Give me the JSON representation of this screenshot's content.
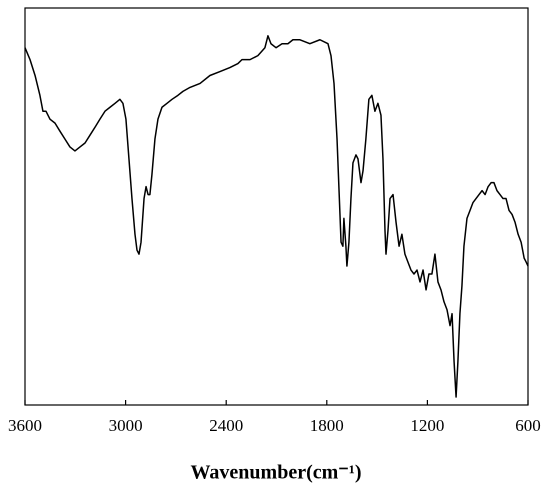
{
  "chart_data": {
    "type": "line",
    "x_label": "Wavenumber(cm⁻¹)",
    "xlim": [
      3600,
      600
    ],
    "xticks": [
      3600,
      3000,
      2400,
      1800,
      1200,
      600
    ],
    "ylim": [
      0,
      100
    ],
    "series": [
      {
        "color": "#000000",
        "x": [
          3600,
          3570,
          3540,
          3511,
          3493,
          3475,
          3451,
          3421,
          3392,
          3362,
          3332,
          3302,
          3272,
          3242,
          3212,
          3182,
          3153,
          3123,
          3093,
          3063,
          3034,
          3016,
          2998,
          2980,
          2962,
          2944,
          2932,
          2920,
          2908,
          2890,
          2878,
          2866,
          2855,
          2843,
          2825,
          2807,
          2783,
          2753,
          2723,
          2688,
          2658,
          2616,
          2556,
          2497,
          2437,
          2378,
          2330,
          2306,
          2258,
          2211,
          2169,
          2151,
          2133,
          2103,
          2067,
          2032,
          2002,
          1960,
          1901,
          1841,
          1793,
          1775,
          1757,
          1739,
          1727,
          1715,
          1704,
          1698,
          1686,
          1680,
          1668,
          1656,
          1644,
          1626,
          1614,
          1596,
          1584,
          1567,
          1549,
          1531,
          1513,
          1495,
          1477,
          1465,
          1453,
          1447,
          1435,
          1423,
          1405,
          1387,
          1369,
          1352,
          1334,
          1316,
          1298,
          1280,
          1262,
          1244,
          1226,
          1208,
          1191,
          1173,
          1155,
          1137,
          1119,
          1101,
          1083,
          1065,
          1053,
          1041,
          1029,
          1018,
          1006,
          994,
          982,
          964,
          946,
          928,
          910,
          892,
          874,
          856,
          838,
          820,
          803,
          785,
          767,
          749,
          731,
          713,
          695,
          677,
          659,
          641,
          623,
          611,
          600
        ],
        "values": [
          90,
          87,
          83,
          78,
          74,
          74,
          72,
          71,
          69,
          67,
          65,
          64,
          65,
          66,
          68,
          70,
          72,
          74,
          75,
          76,
          77,
          76,
          72,
          62,
          52,
          43,
          39,
          38,
          41,
          52,
          55,
          53,
          53,
          58,
          67,
          72,
          75,
          76,
          77,
          78,
          79,
          80,
          81,
          83,
          84,
          85,
          86,
          87,
          87,
          88,
          90,
          93,
          91,
          90,
          91,
          91,
          92,
          92,
          91,
          92,
          91,
          88,
          81,
          67,
          54,
          41,
          40,
          47,
          40,
          35,
          41,
          52,
          61,
          63,
          62,
          56,
          59,
          67,
          77,
          78,
          74,
          76,
          73,
          62,
          44,
          38,
          44,
          52,
          53,
          46,
          40,
          43,
          38,
          36,
          34,
          33,
          34,
          31,
          34,
          29,
          33,
          33,
          38,
          31,
          29,
          26,
          24,
          20,
          23,
          11,
          2,
          11,
          23,
          30,
          40,
          47,
          49,
          51,
          52,
          53,
          54,
          53,
          55,
          56,
          56,
          54,
          53,
          52,
          52,
          49,
          48,
          46,
          43,
          41,
          37,
          36,
          35
        ]
      }
    ]
  }
}
